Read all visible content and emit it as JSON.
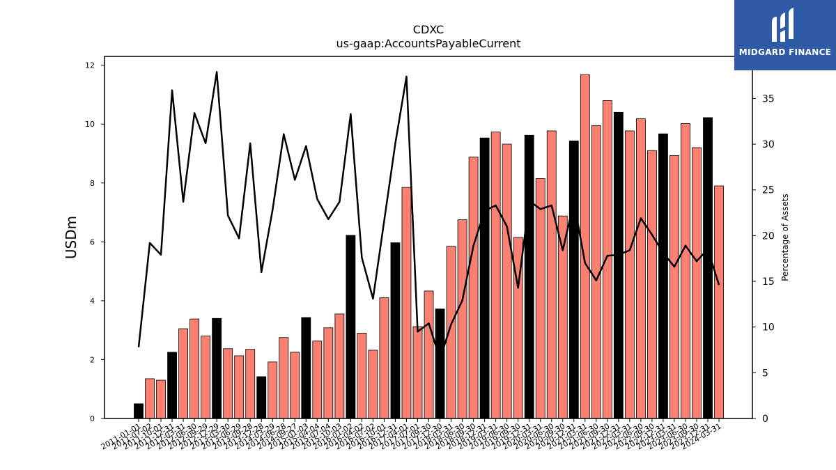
{
  "chart_data": {
    "type": "bar",
    "title": "CDXC",
    "subtitle": "us-gaap:AccountsPayableCurrent",
    "ylabel": "USDm",
    "y2label": "Percentage of Assets",
    "ylim": [
      0,
      12.3
    ],
    "y2lim": [
      0,
      39.6
    ],
    "yticks": [
      0,
      2,
      4,
      6,
      8,
      10,
      12
    ],
    "y2ticks": [
      0,
      5,
      10,
      15,
      20,
      25,
      30,
      35
    ],
    "categories": [
      "2011-01-01",
      "2011-07-02",
      "2011-10-01",
      "2011-12-31",
      "2012-03-31",
      "2012-06-30",
      "2012-09-29",
      "2012-12-29",
      "2013-03-30",
      "2013-06-29",
      "2013-09-28",
      "2013-12-28",
      "2014-03-29",
      "2014-06-28",
      "2014-09-27",
      "2015-01-03",
      "2015-04-04",
      "2015-07-04",
      "2015-10-03",
      "2016-01-02",
      "2016-04-02",
      "2016-07-02",
      "2016-10-01",
      "2016-12-31",
      "2017-04-01",
      "2017-07-01",
      "2017-09-30",
      "2017-12-30",
      "2018-03-31",
      "2018-06-30",
      "2018-09-30",
      "2018-12-31",
      "2019-03-31",
      "2019-06-30",
      "2019-09-30",
      "2019-12-31",
      "2020-03-31",
      "2020-06-30",
      "2020-09-30",
      "2020-12-31",
      "2021-03-31",
      "2021-06-30",
      "2021-09-30",
      "2021-12-31",
      "2022-03-31",
      "2022-06-30",
      "2022-09-30",
      "2022-12-31",
      "2023-03-31",
      "2023-06-30",
      "2023-09-30",
      "2023-12-31",
      "2024-03-31"
    ],
    "series": [
      {
        "name": "",
        "axis": "left",
        "values": [
          0.5,
          1.35,
          1.3,
          2.25,
          3.05,
          3.38,
          2.8,
          3.4,
          2.37,
          2.13,
          2.35,
          1.42,
          1.92,
          2.75,
          2.25,
          3.43,
          2.63,
          3.08,
          3.55,
          6.22,
          2.9,
          2.32,
          4.1,
          5.97,
          7.85,
          3.12,
          4.33,
          3.72,
          5.85,
          6.75,
          8.88,
          9.53,
          9.73,
          9.32,
          6.15,
          9.62,
          8.15,
          9.77,
          6.88,
          9.43,
          11.68,
          9.95,
          10.8,
          10.4,
          9.77,
          10.18,
          9.1,
          9.67,
          8.93,
          10.02,
          9.2,
          10.22,
          7.9
        ],
        "highlight": [
          true,
          false,
          false,
          true,
          false,
          false,
          false,
          true,
          false,
          false,
          false,
          true,
          false,
          false,
          false,
          true,
          false,
          false,
          false,
          true,
          false,
          false,
          false,
          true,
          false,
          false,
          false,
          true,
          false,
          false,
          false,
          true,
          false,
          false,
          false,
          true,
          false,
          false,
          false,
          true,
          false,
          false,
          false,
          true,
          false,
          false,
          false,
          true,
          false,
          false,
          false,
          true,
          false
        ]
      },
      {
        "name": "",
        "axis": "right",
        "type": "line",
        "values": [
          7.8,
          19.2,
          17.9,
          35.9,
          23.7,
          33.4,
          30.1,
          37.9,
          22.2,
          19.7,
          30.1,
          16.0,
          22.8,
          31.1,
          26.1,
          29.8,
          24.0,
          21.8,
          23.7,
          33.3,
          17.6,
          13.1,
          21.6,
          30.1,
          37.4,
          9.5,
          10.4,
          6.5,
          10.3,
          12.9,
          18.9,
          22.7,
          23.3,
          21.0,
          14.3,
          23.8,
          22.9,
          23.3,
          18.4,
          23.7,
          17.0,
          15.1,
          17.8,
          17.9,
          18.4,
          21.9,
          20.1,
          18.1,
          16.6,
          18.9,
          17.2,
          18.5,
          14.6
        ]
      }
    ],
    "colors": {
      "bar": "#fa8072",
      "bar_highlight": "#000000",
      "bar_edge": "#000000",
      "line": "#000000"
    },
    "grid": false,
    "legend": "none"
  },
  "logo": {
    "text": "MIDGARD FINANCE"
  }
}
